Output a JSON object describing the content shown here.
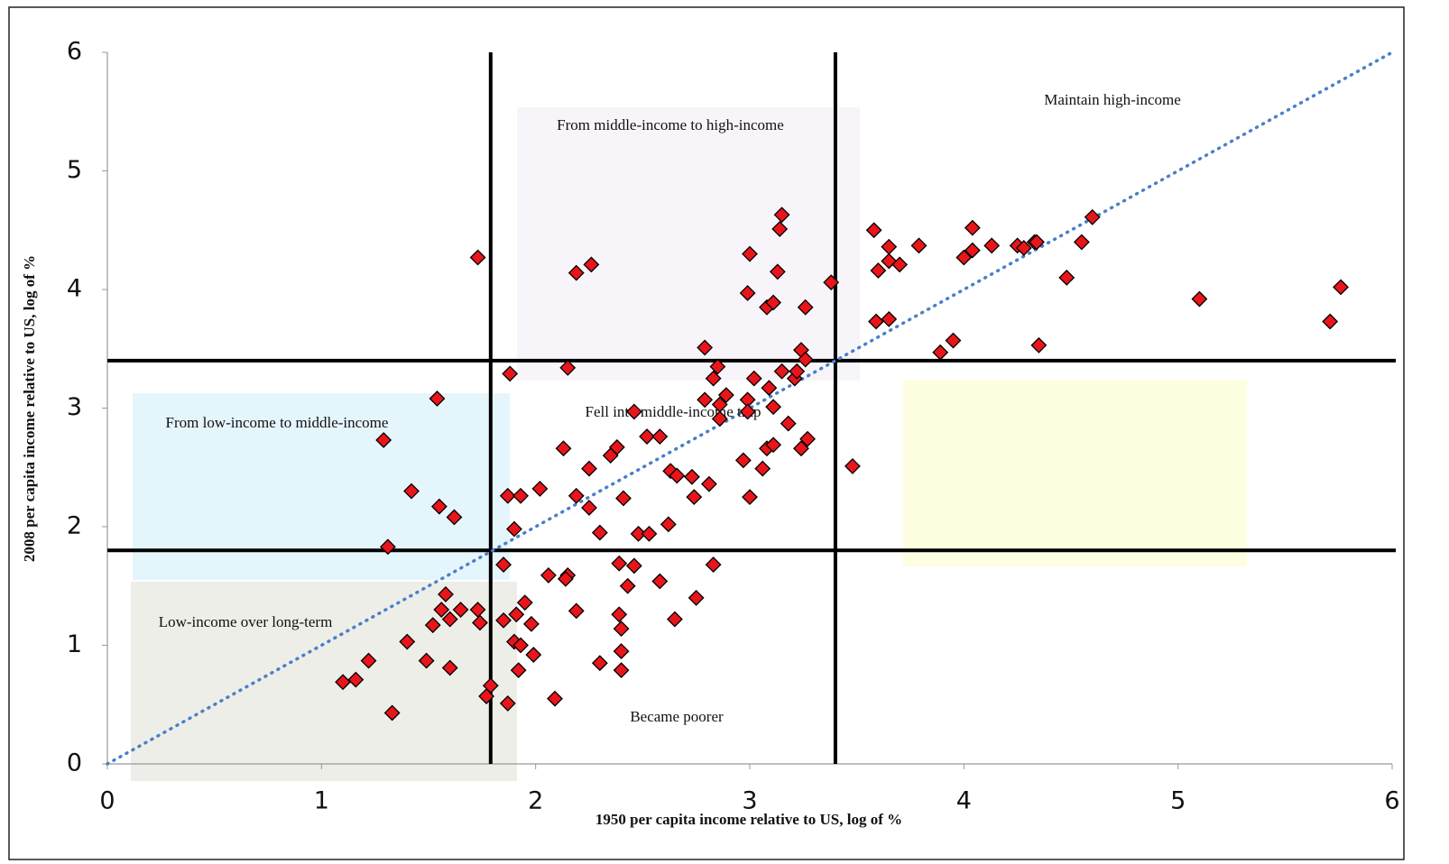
{
  "chart_data": {
    "type": "scatter",
    "x_label": "1950 per capita income relative to US, log of %",
    "y_label": "2008 per capita income relative to US, log of %",
    "xlim": [
      0,
      6
    ],
    "ylim": [
      0,
      6
    ],
    "xticks": [
      0,
      1,
      2,
      3,
      4,
      5,
      6
    ],
    "yticks": [
      0,
      1,
      2,
      3,
      4,
      5,
      6
    ],
    "grid": false,
    "color": "#e8151b",
    "diagonal_color": "#4a7fc8",
    "x_thresholds": [
      1.79,
      3.4
    ],
    "y_thresholds": [
      1.8,
      3.4
    ],
    "annotations": [
      "From middle-income to  high-income",
      "Maintain high-income",
      "From low-income to middle-income",
      "Fell into middle-income trap",
      "Low-income over long-term",
      "Became poorer"
    ],
    "x": [
      1.73,
      1.54,
      1.29,
      1.42,
      1.55,
      1.62,
      1.31,
      1.88,
      1.87,
      1.93,
      1.9,
      2.02,
      1.85,
      1.58,
      1.56,
      1.6,
      1.52,
      1.65,
      1.73,
      1.74,
      1.4,
      1.22,
      1.49,
      1.6,
      1.1,
      1.16,
      1.33,
      1.95,
      1.91,
      1.85,
      1.98,
      1.9,
      1.93,
      1.99,
      1.92,
      1.79,
      1.77,
      1.87,
      2.09,
      2.06,
      2.15,
      2.14,
      2.19,
      2.3,
      2.4,
      2.4,
      2.4,
      2.39,
      2.43,
      2.39,
      2.46,
      2.58,
      2.65,
      2.75,
      2.83,
      2.48,
      2.53,
      2.62,
      2.3,
      2.25,
      2.19,
      2.41,
      2.25,
      2.13,
      2.35,
      2.38,
      2.46,
      2.52,
      2.58,
      2.63,
      2.66,
      2.73,
      2.74,
      2.81,
      2.79,
      2.86,
      2.89,
      2.86,
      2.83,
      2.85,
      2.79,
      2.99,
      2.99,
      3.02,
      3.09,
      3.11,
      3.15,
      3.21,
      3.22,
      3.18,
      2.97,
      3.06,
      3.08,
      3.11,
      3.0,
      3.24,
      3.27,
      3.24,
      3.26,
      3.48,
      2.99,
      3.08,
      3.11,
      3.26,
      3.13,
      3.0,
      3.15,
      3.14,
      3.38,
      2.19,
      2.26,
      2.15,
      3.58,
      3.65,
      3.65,
      3.6,
      3.7,
      3.79,
      3.59,
      3.65,
      4.0,
      4.04,
      4.04,
      4.13,
      4.25,
      4.28,
      4.33,
      4.34,
      4.55,
      4.6,
      4.48,
      3.95,
      3.89,
      4.35,
      5.1,
      5.71,
      5.76
    ],
    "values": [
      4.27,
      3.08,
      2.73,
      2.3,
      2.17,
      2.08,
      1.83,
      3.29,
      2.26,
      2.26,
      1.98,
      2.32,
      1.68,
      1.43,
      1.3,
      1.22,
      1.17,
      1.3,
      1.3,
      1.19,
      1.03,
      0.87,
      0.87,
      0.81,
      0.69,
      0.71,
      0.43,
      1.36,
      1.26,
      1.21,
      1.18,
      1.03,
      1.0,
      0.92,
      0.79,
      0.66,
      0.57,
      0.51,
      0.55,
      1.59,
      1.59,
      1.56,
      1.29,
      0.85,
      0.79,
      0.95,
      1.14,
      1.26,
      1.5,
      1.69,
      1.67,
      1.54,
      1.22,
      1.4,
      1.68,
      1.94,
      1.94,
      2.02,
      1.95,
      2.16,
      2.26,
      2.24,
      2.49,
      2.66,
      2.6,
      2.67,
      2.97,
      2.76,
      2.76,
      2.47,
      2.43,
      2.42,
      2.25,
      2.36,
      3.07,
      3.03,
      3.11,
      2.91,
      3.25,
      3.35,
      3.51,
      3.07,
      2.97,
      3.25,
      3.17,
      3.01,
      3.31,
      3.25,
      3.31,
      2.87,
      2.56,
      2.49,
      2.66,
      2.69,
      2.25,
      2.66,
      2.74,
      3.49,
      3.41,
      2.51,
      3.97,
      3.85,
      3.89,
      3.85,
      4.15,
      4.3,
      4.63,
      4.51,
      4.06,
      4.14,
      4.21,
      3.34,
      4.5,
      4.36,
      4.24,
      4.16,
      4.21,
      4.37,
      3.73,
      3.75,
      4.27,
      4.33,
      4.52,
      4.37,
      4.37,
      4.35,
      4.4,
      4.4,
      4.4,
      4.61,
      4.1,
      3.57,
      3.47,
      3.53,
      3.92,
      3.73,
      4.02
    ]
  }
}
